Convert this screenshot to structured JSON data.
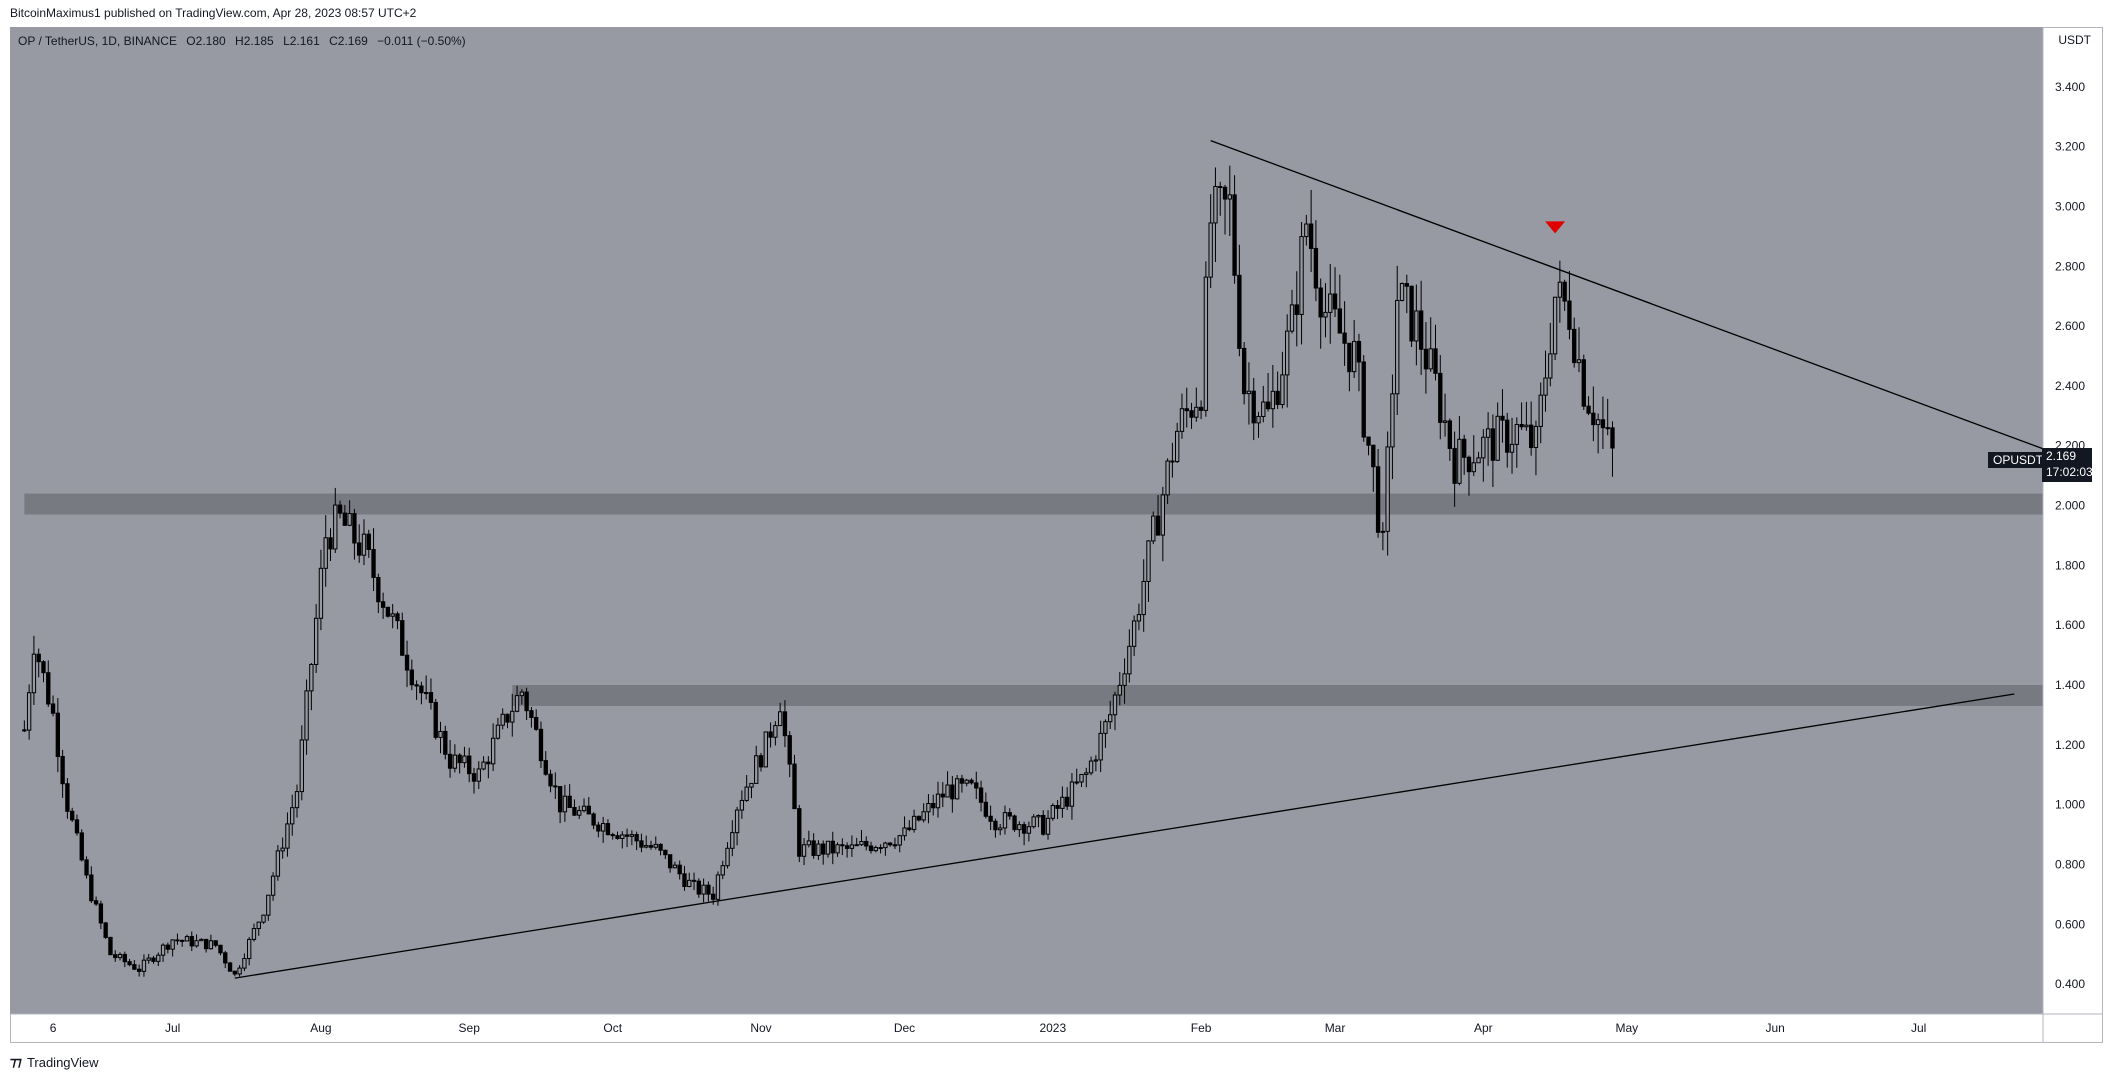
{
  "header": {
    "publisher": "BitcoinMaximus1 published on TradingView.com, Apr 28, 2023 08:57 UTC+2"
  },
  "legend": {
    "symbol": "OP / TetherUS, 1D, BINANCE",
    "open_label": "O",
    "open": "2.180",
    "high_label": "H",
    "high": "2.185",
    "low_label": "L",
    "low": "2.161",
    "close_label": "C",
    "close": "2.169",
    "change": "−0.011 (−0.50%)"
  },
  "price_scale": {
    "unit": "USDT"
  },
  "last_price": {
    "symbol": "OPUSDT",
    "value": "2.169",
    "countdown": "17:02:03"
  },
  "footer": {
    "brand": "TradingView"
  },
  "colors": {
    "background": "#979aa3",
    "candle": "#000000",
    "zone": "#5f6168",
    "marker": "#e00000"
  },
  "chart_data": {
    "type": "candlestick",
    "title": "",
    "xlabel": "",
    "ylabel": "",
    "y_range": [
      0.3,
      3.6
    ],
    "x_range": [
      "2022-05-28",
      "2023-07-27"
    ],
    "y_ticks": [
      "0.400",
      "0.600",
      "0.800",
      "1.000",
      "1.200",
      "1.400",
      "1.600",
      "1.800",
      "2.000",
      "2.200",
      "2.400",
      "2.600",
      "2.800",
      "3.000",
      "3.200",
      "3.400"
    ],
    "x_ticks": [
      {
        "date": "2022-06-06",
        "label": "6"
      },
      {
        "date": "2022-07-01",
        "label": "Jul"
      },
      {
        "date": "2022-08-01",
        "label": "Aug"
      },
      {
        "date": "2022-09-01",
        "label": "Sep"
      },
      {
        "date": "2022-10-01",
        "label": "Oct"
      },
      {
        "date": "2022-11-01",
        "label": "Nov"
      },
      {
        "date": "2022-12-01",
        "label": "Dec"
      },
      {
        "date": "2023-01-01",
        "label": "2023"
      },
      {
        "date": "2023-02-01",
        "label": "Feb"
      },
      {
        "date": "2023-03-01",
        "label": "Mar"
      },
      {
        "date": "2023-04-01",
        "label": "Apr"
      },
      {
        "date": "2023-05-01",
        "label": "May"
      },
      {
        "date": "2023-06-01",
        "label": "Jun"
      },
      {
        "date": "2023-07-01",
        "label": "Jul"
      }
    ],
    "price_path": [
      [
        "2022-05-31",
        1.25
      ],
      [
        "2022-06-02",
        1.55
      ],
      [
        "2022-06-06",
        1.3
      ],
      [
        "2022-06-09",
        1.0
      ],
      [
        "2022-06-13",
        0.75
      ],
      [
        "2022-06-18",
        0.5
      ],
      [
        "2022-06-24",
        0.45
      ],
      [
        "2022-07-01",
        0.55
      ],
      [
        "2022-07-10",
        0.53
      ],
      [
        "2022-07-14",
        0.43
      ],
      [
        "2022-07-20",
        0.65
      ],
      [
        "2022-07-27",
        1.05
      ],
      [
        "2022-08-02",
        1.9
      ],
      [
        "2022-08-05",
        1.95
      ],
      [
        "2022-08-10",
        1.85
      ],
      [
        "2022-08-20",
        1.45
      ],
      [
        "2022-08-28",
        1.15
      ],
      [
        "2022-09-03",
        1.1
      ],
      [
        "2022-09-09",
        1.3
      ],
      [
        "2022-09-12",
        1.38
      ],
      [
        "2022-09-20",
        1.0
      ],
      [
        "2022-10-01",
        0.92
      ],
      [
        "2022-10-10",
        0.85
      ],
      [
        "2022-10-18",
        0.72
      ],
      [
        "2022-10-22",
        0.7
      ],
      [
        "2022-10-27",
        1.0
      ],
      [
        "2022-11-02",
        1.2
      ],
      [
        "2022-11-05",
        1.35
      ],
      [
        "2022-11-09",
        0.85
      ],
      [
        "2022-11-20",
        0.85
      ],
      [
        "2022-12-01",
        0.9
      ],
      [
        "2022-12-10",
        1.05
      ],
      [
        "2022-12-15",
        1.05
      ],
      [
        "2022-12-20",
        0.95
      ],
      [
        "2022-12-30",
        0.93
      ],
      [
        "2023-01-08",
        1.1
      ],
      [
        "2023-01-13",
        1.3
      ],
      [
        "2023-01-18",
        1.6
      ],
      [
        "2023-01-22",
        1.9
      ],
      [
        "2023-01-27",
        2.25
      ],
      [
        "2023-02-01",
        2.4
      ],
      [
        "2023-02-03",
        2.95
      ],
      [
        "2023-02-07",
        3.0
      ],
      [
        "2023-02-10",
        2.4
      ],
      [
        "2023-02-15",
        2.3
      ],
      [
        "2023-02-20",
        2.6
      ],
      [
        "2023-02-23",
        2.95
      ],
      [
        "2023-02-27",
        2.65
      ],
      [
        "2023-03-05",
        2.5
      ],
      [
        "2023-03-09",
        2.1
      ],
      [
        "2023-03-11",
        1.85
      ],
      [
        "2023-03-14",
        2.7
      ],
      [
        "2023-03-18",
        2.6
      ],
      [
        "2023-03-22",
        2.4
      ],
      [
        "2023-03-26",
        2.15
      ],
      [
        "2023-04-01",
        2.2
      ],
      [
        "2023-04-08",
        2.25
      ],
      [
        "2023-04-12",
        2.2
      ],
      [
        "2023-04-16",
        2.7
      ],
      [
        "2023-04-19",
        2.65
      ],
      [
        "2023-04-22",
        2.4
      ],
      [
        "2023-04-28",
        2.169
      ]
    ],
    "zones": [
      {
        "x_from": "2022-05-31",
        "x_to": "2023-07-27",
        "y_from": 1.97,
        "y_to": 2.04
      },
      {
        "x_from": "2022-09-10",
        "x_to": "2023-07-27",
        "y_from": 1.33,
        "y_to": 1.4
      }
    ],
    "trendlines": [
      {
        "from": [
          "2023-02-03",
          3.22
        ],
        "to": [
          "2023-07-27",
          2.19
        ]
      },
      {
        "from": [
          "2022-07-14",
          0.42
        ],
        "to": [
          "2023-07-21",
          1.37
        ]
      }
    ],
    "marker": {
      "type": "arrow-down",
      "date": "2023-04-16",
      "price": 2.93
    }
  }
}
